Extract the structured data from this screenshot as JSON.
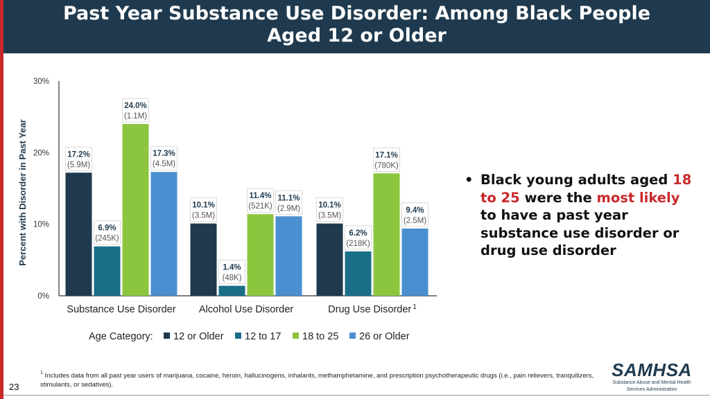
{
  "slide": {
    "title_line1": "Past Year Substance Use Disorder: Among Black People",
    "title_line2": "Aged 12 or Older",
    "page_number": "23"
  },
  "bullet": {
    "part1": "Black young adults aged ",
    "part2": "18 to 25",
    "part3": " were the ",
    "part4": "most likely",
    "part5": " to have a past year substance use disorder or drug use disorder",
    "highlight_color": "#c8282a"
  },
  "footnote": {
    "marker": "1",
    "text": " Includes data from all past year users of marijuana, cocaine, heroin, hallucinogens, inhalants, methamphetamine, and prescription psychotherapeutic drugs (i.e., pain relievers, tranquilizers, stimulants, or sedatives)."
  },
  "logo": {
    "name": "SAMHSA",
    "subtitle_line1": "Substance Abuse and Mental Health",
    "subtitle_line2": "Services Administration"
  },
  "chart_data": {
    "type": "bar",
    "title": "",
    "xlabel": "",
    "ylabel": "Percent with Disorder in Past Year",
    "ylim": [
      0,
      30
    ],
    "yticks": [
      "0%",
      "10%",
      "20%",
      "30%"
    ],
    "ytick_values": [
      0,
      10,
      20,
      30
    ],
    "grid": false,
    "categories": [
      "Substance Use Disorder",
      "Alcohol Use Disorder",
      "Drug Use Disorder"
    ],
    "category_superscripts": [
      "",
      "",
      "1"
    ],
    "legend_title": "Age Category:",
    "legend_position": "bottom",
    "series": [
      {
        "name": "12 or Older",
        "color": "#1f3a4e",
        "values": [
          17.2,
          10.1,
          10.1
        ],
        "labels": [
          "17.2%",
          "10.1%",
          "10.1%"
        ],
        "counts": [
          "(5.9M)",
          "(3.5M)",
          "(3.5M)"
        ]
      },
      {
        "name": "12 to 17",
        "color": "#1a6f87",
        "values": [
          6.9,
          1.4,
          6.2
        ],
        "labels": [
          "6.9%",
          "1.4%",
          "6.2%"
        ],
        "counts": [
          "(245K)",
          "(48K)",
          "(218K)"
        ]
      },
      {
        "name": "18 to 25",
        "color": "#8cc63f",
        "values": [
          24.0,
          11.4,
          17.1
        ],
        "labels": [
          "24.0%",
          "11.4%",
          "17.1%"
        ],
        "counts": [
          "(1.1M)",
          "(521K)",
          "(780K)"
        ]
      },
      {
        "name": "26 or Older",
        "color": "#4a8fd0",
        "values": [
          17.3,
          11.1,
          9.4
        ],
        "labels": [
          "17.3%",
          "11.1%",
          "9.4%"
        ],
        "counts": [
          "(4.5M)",
          "(2.9M)",
          "(2.5M)"
        ]
      }
    ]
  }
}
